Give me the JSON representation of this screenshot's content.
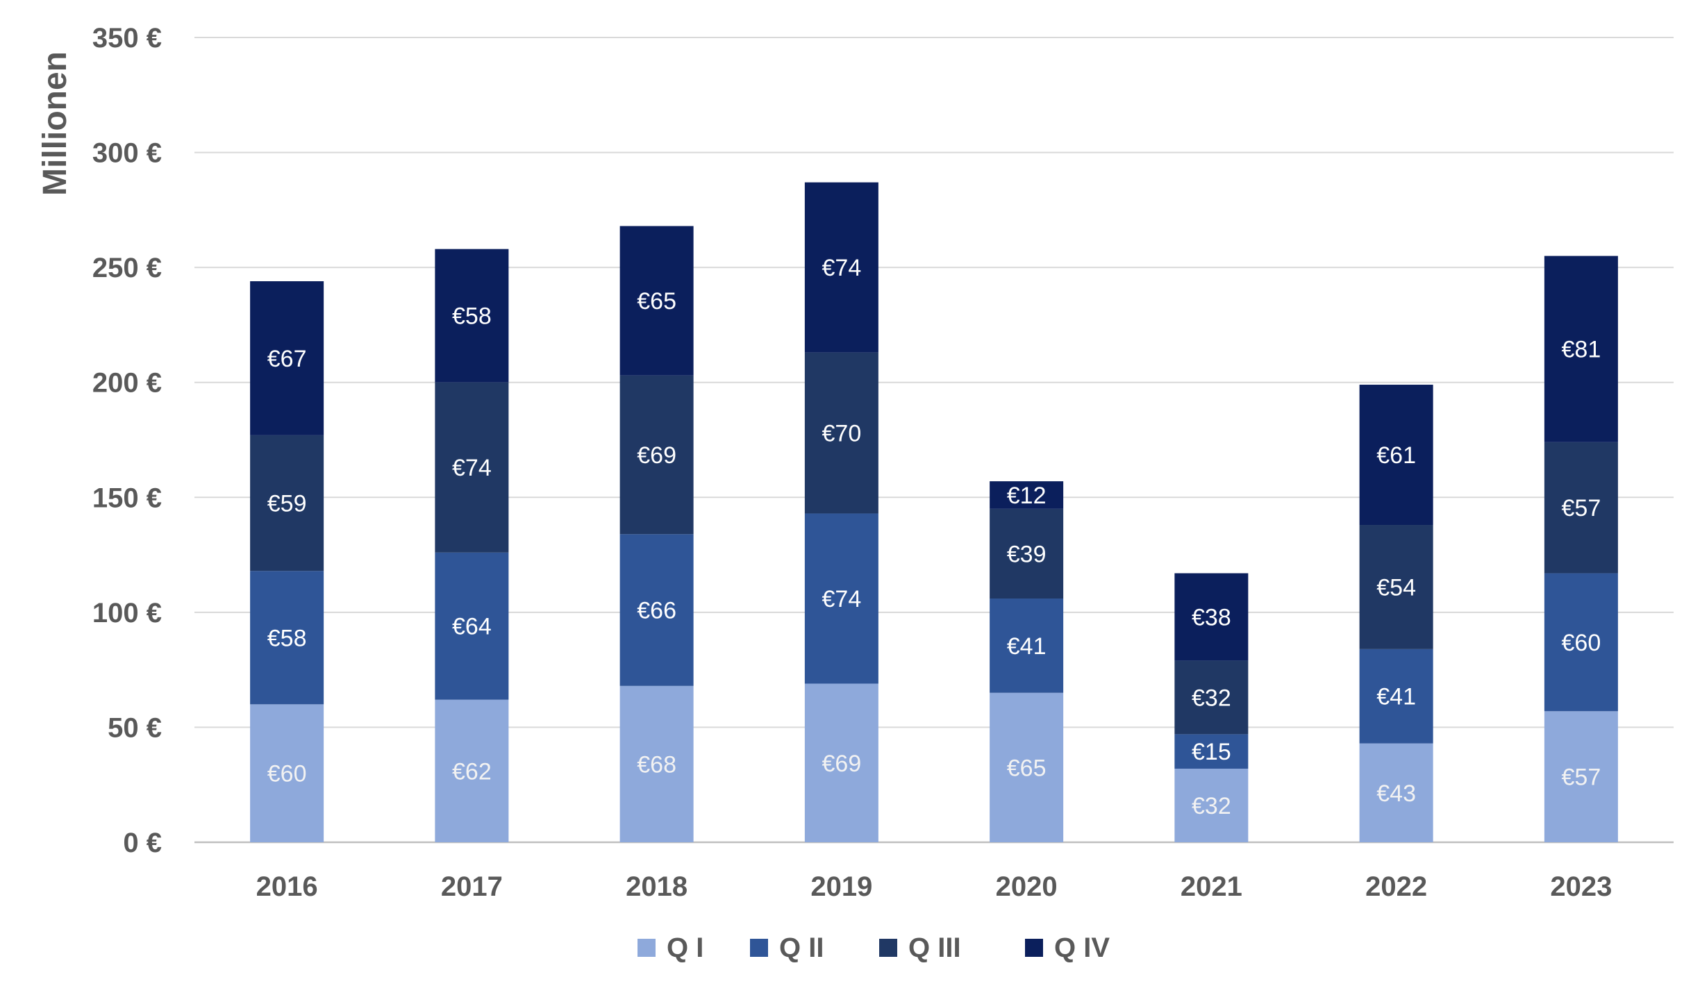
{
  "chart_data": {
    "type": "bar",
    "stacked": true,
    "title": "",
    "xlabel": "",
    "ylabel": "Millionen",
    "ylim": [
      0,
      350
    ],
    "yticks": [
      0,
      50,
      100,
      150,
      200,
      250,
      300,
      350
    ],
    "ytick_labels": [
      "0 €",
      "50 €",
      "100 €",
      "150 €",
      "200 €",
      "250 €",
      "300 €",
      "350 €"
    ],
    "grid": true,
    "legend_position": "bottom",
    "data_label_prefix": "€",
    "categories": [
      "2016",
      "2017",
      "2018",
      "2019",
      "2020",
      "2021",
      "2022",
      "2023"
    ],
    "series": [
      {
        "name": "Q I",
        "color": "#8EA9DB",
        "label_color": "#F2F2F2",
        "values": [
          60,
          62,
          68,
          69,
          65,
          32,
          43,
          57
        ]
      },
      {
        "name": "Q II",
        "color": "#2F5597",
        "label_color": "#FFFFFF",
        "values": [
          58,
          64,
          66,
          74,
          41,
          15,
          41,
          60
        ]
      },
      {
        "name": "Q III",
        "color": "#203864",
        "label_color": "#FFFFFF",
        "values": [
          59,
          74,
          69,
          70,
          39,
          32,
          54,
          57
        ]
      },
      {
        "name": "Q IV",
        "color": "#0B1F5C",
        "label_color": "#FFFFFF",
        "values": [
          67,
          58,
          65,
          74,
          12,
          38,
          61,
          81
        ]
      }
    ]
  }
}
